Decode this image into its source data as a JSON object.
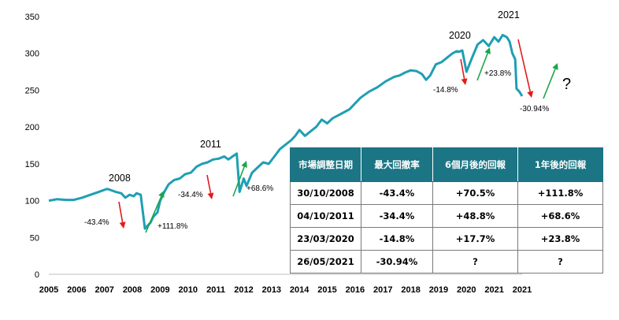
{
  "chart_data": {
    "type": "line",
    "series_color": "#1e9fb3",
    "yticks": [
      "0",
      "50",
      "100",
      "150",
      "200",
      "250",
      "300",
      "350"
    ],
    "ylim": [
      0,
      350
    ],
    "xticks": [
      "2005",
      "2006",
      "2007",
      "2008",
      "2009",
      "2010",
      "2011",
      "2012",
      "2013",
      "2014",
      "2015",
      "2016",
      "2017",
      "2018",
      "2019",
      "2020",
      "2021",
      "2021"
    ],
    "x": [
      2005.0,
      2005.3,
      2005.6,
      2005.9,
      2006.2,
      2006.5,
      2006.8,
      2007.1,
      2007.4,
      2007.6,
      2007.75,
      2007.9,
      2008.05,
      2008.15,
      2008.3,
      2008.45,
      2008.55,
      2008.65,
      2008.75,
      2008.9,
      2009.0,
      2009.15,
      2009.3,
      2009.5,
      2009.7,
      2009.9,
      2010.1,
      2010.3,
      2010.5,
      2010.7,
      2010.9,
      2011.1,
      2011.3,
      2011.45,
      2011.6,
      2011.75,
      2011.85,
      2012.0,
      2012.1,
      2012.3,
      2012.5,
      2012.7,
      2012.9,
      2013.1,
      2013.3,
      2013.5,
      2013.7,
      2013.85,
      2014.0,
      2014.2,
      2014.4,
      2014.6,
      2014.8,
      2015.0,
      2015.2,
      2015.4,
      2015.6,
      2015.8,
      2016.0,
      2016.2,
      2016.5,
      2016.8,
      2017.1,
      2017.4,
      2017.6,
      2017.8,
      2018.0,
      2018.2,
      2018.4,
      2018.55,
      2018.7,
      2018.9,
      2019.1,
      2019.3,
      2019.5,
      2019.65,
      2019.72,
      2019.85,
      2020.0,
      2020.2,
      2020.4,
      2020.6,
      2020.8,
      2021.0,
      2021.15,
      2021.3,
      2021.45,
      2021.55,
      2021.65,
      2021.75,
      2021.8,
      2021.9,
      2022.0
    ],
    "values": [
      100,
      102,
      101,
      101,
      104,
      108,
      112,
      116,
      112,
      110,
      104,
      108,
      106,
      110,
      108,
      62,
      66,
      70,
      78,
      84,
      100,
      112,
      122,
      128,
      130,
      136,
      138,
      146,
      150,
      152,
      156,
      157,
      160,
      156,
      160,
      164,
      112,
      130,
      120,
      138,
      145,
      152,
      150,
      160,
      170,
      176,
      182,
      188,
      196,
      188,
      194,
      200,
      210,
      205,
      212,
      216,
      220,
      224,
      232,
      240,
      248,
      254,
      262,
      268,
      270,
      274,
      277,
      276,
      272,
      264,
      270,
      285,
      288,
      294,
      300,
      303,
      302,
      304,
      275,
      294,
      312,
      318,
      310,
      322,
      316,
      325,
      322,
      316,
      300,
      292,
      252,
      248,
      242
    ],
    "annotations": {
      "year_2008": "2008",
      "year_2011": "2011",
      "year_2020": "2020",
      "year_2021": "2021",
      "drop_2008": "-43.4%",
      "rise_2008": "+111.8%",
      "drop_2011": "-34.4%",
      "rise_2011": "+68.6%",
      "drop_2020": "-14.8%",
      "rise_2020": "+23.8%",
      "drop_2021": "-30.94%",
      "unknown": "?"
    },
    "arrow_colors": {
      "down": "#e01b1b",
      "up": "#1aa64a"
    }
  },
  "table": {
    "headers": [
      "市場調整日期",
      "最大回撤率",
      "6個月後的回報",
      "1年後的回報"
    ],
    "rows": [
      [
        "30/10/2008",
        "-43.4%",
        "+70.5%",
        "+111.8%"
      ],
      [
        "04/10/2011",
        "-34.4%",
        "+48.8%",
        "+68.6%"
      ],
      [
        "23/03/2020",
        "-14.8%",
        "+17.7%",
        "+23.8%"
      ],
      [
        "26/05/2021",
        "-30.94%",
        "?",
        "?"
      ]
    ]
  }
}
